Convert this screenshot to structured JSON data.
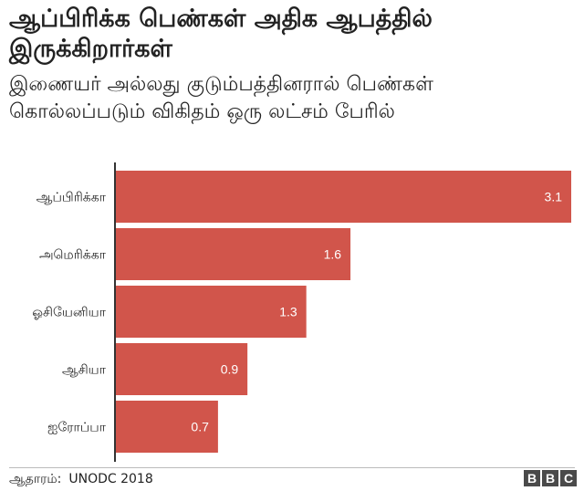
{
  "title": "ஆப்பிரிக்க பெண்கள் அதிக ஆபத்தில் இருக்கிறார்கள்",
  "subtitle": "இணையர் அல்லது குடும்பத்தினரால் பெண்கள் கொல்லப்படும் விகிதம் ஒரு லட்சம் பேரில்",
  "source": {
    "label": "ஆதாரம்:",
    "value": "UNODC 2018"
  },
  "logo": [
    "B",
    "B",
    "C"
  ],
  "colors": {
    "bar": "#d1554b",
    "axis": "#333333",
    "value_text": "#ffffff"
  },
  "chart_data": {
    "type": "bar",
    "orientation": "horizontal",
    "categories": [
      "ஆப்பிரிக்கா",
      "அமெரிக்கா",
      "ஓசியேனியா",
      "ஆசியா",
      "ஐரோப்பா"
    ],
    "values": [
      3.1,
      1.6,
      1.3,
      0.9,
      0.7
    ],
    "value_labels": [
      "3.1",
      "1.6",
      "1.3",
      "0.9",
      "0.7"
    ],
    "xlim": [
      0,
      3.1
    ],
    "grid": false,
    "legend": "none"
  }
}
